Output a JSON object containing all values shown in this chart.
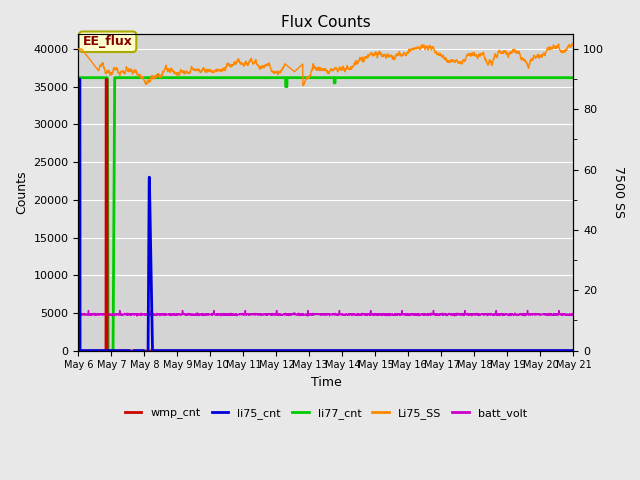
{
  "title": "Flux Counts",
  "xlabel": "Time",
  "ylabel_left": "Counts",
  "ylabel_right": "7500 SS",
  "background_color": "#e8e8e8",
  "plot_bg_color": "#d4d4d4",
  "annotation_text": "EE_flux",
  "annotation_color": "#880000",
  "annotation_bg": "#ffffcc",
  "annotation_border": "#aaaa00",
  "ylim_left": [
    0,
    42000
  ],
  "ylim_right": [
    0,
    105
  ],
  "xlim_days": 15,
  "x_tick_labels": [
    "May 6",
    "May 7",
    "May 8",
    "May 9",
    "May 10",
    "May 11",
    "May 12",
    "May 13",
    "May 14",
    "May 15",
    "May 16",
    "May 17",
    "May 18",
    "May 19",
    "May 20",
    "May 21"
  ],
  "legend_entries": [
    "wmp_cnt",
    "li75_cnt",
    "li77_cnt",
    "Li75_SS",
    "batt_volt"
  ],
  "legend_colors": [
    "#cc0000",
    "#0000dd",
    "#00cc00",
    "#ff8800",
    "#cc00cc"
  ],
  "wmp_color": "#cc0000",
  "li75_color": "#0000dd",
  "li77_color": "#00cc00",
  "li75ss_color": "#ff8800",
  "batt_color": "#cc00cc",
  "li77_level": 36200,
  "batt_base": 4800,
  "batt_spike": 5300,
  "right_yticks": [
    0,
    20,
    40,
    60,
    80,
    100
  ],
  "left_yticks": [
    0,
    5000,
    10000,
    15000,
    20000,
    25000,
    30000,
    35000,
    40000
  ]
}
